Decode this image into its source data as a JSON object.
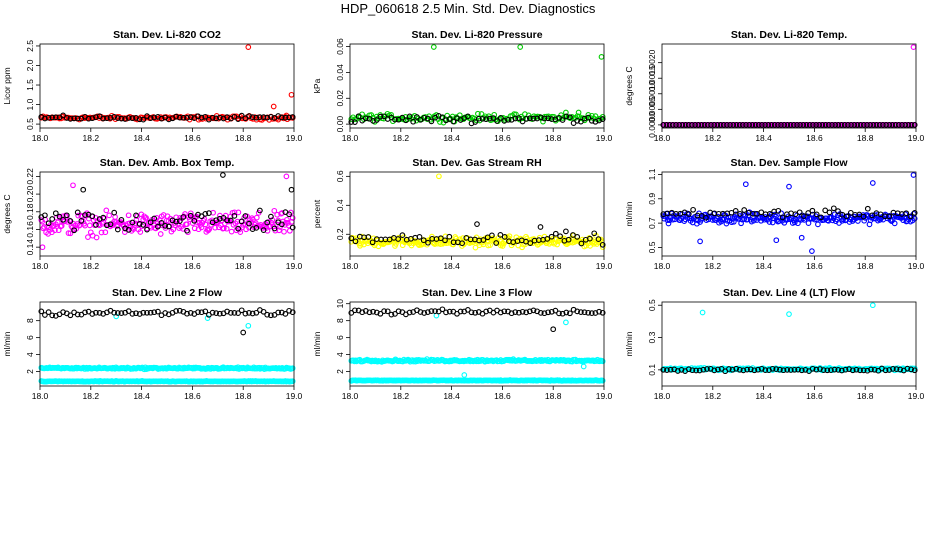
{
  "title": "HDP_060618  2.5 Min. Std. Dev. Diagnostics",
  "chart_data": [
    {
      "type": "scatter",
      "title": "Stan. Dev. Li-820 CO2",
      "ylabel": "Licor ppm",
      "xlim": [
        18.0,
        19.0
      ],
      "ylim": [
        0.4,
        2.55
      ],
      "xticks": [
        "18.0",
        "18.2",
        "18.4",
        "18.6",
        "18.8",
        "19.0"
      ],
      "yticks": [
        {
          "v": 0.5,
          "t": "0.5"
        },
        {
          "v": 1.0,
          "t": "1.0"
        },
        {
          "v": 1.5,
          "t": "1.5"
        },
        {
          "v": 2.0,
          "t": "2.0"
        },
        {
          "v": 2.5,
          "t": "2.5"
        }
      ],
      "series": [
        {
          "color": "#ff0000",
          "base": 0.66,
          "spread": 0.07,
          "n": 140,
          "extra": [
            [
              18.82,
              2.47
            ],
            [
              18.92,
              0.95
            ],
            [
              18.97,
              0.72
            ],
            [
              18.99,
              1.25
            ]
          ]
        },
        {
          "color": "#000000",
          "base": 0.66,
          "spread": 0.07,
          "n": 70,
          "extra": []
        }
      ]
    },
    {
      "type": "scatter",
      "title": "Stan. Dev. Li-820 Pressure",
      "ylabel": "kPa",
      "xlim": [
        18.0,
        19.0
      ],
      "ylim": [
        -0.003,
        0.062
      ],
      "xticks": [
        "18.0",
        "18.2",
        "18.4",
        "18.6",
        "18.8",
        "19.0"
      ],
      "yticks": [
        {
          "v": 0.0,
          "t": "0.00"
        },
        {
          "v": 0.02,
          "t": "0.02"
        },
        {
          "v": 0.04,
          "t": "0.04"
        },
        {
          "v": 0.06,
          "t": "0.06"
        }
      ],
      "series": [
        {
          "color": "#00cc00",
          "base": 0.005,
          "spread": 0.004,
          "n": 140,
          "extra": [
            [
              18.33,
              0.06
            ],
            [
              18.67,
              0.06
            ],
            [
              18.99,
              0.052
            ],
            [
              18.85,
              0.009
            ],
            [
              18.9,
              0.009
            ]
          ]
        },
        {
          "color": "#000000",
          "base": 0.004,
          "spread": 0.004,
          "n": 70,
          "extra": []
        }
      ]
    },
    {
      "type": "scatter",
      "title": "Stan. Dev. Li-820 Temp.",
      "ylabel": "degrees C",
      "xlim": [
        18.0,
        19.0
      ],
      "ylim": [
        -0.0001,
        0.0026
      ],
      "xticks": [
        "18.0",
        "18.2",
        "18.4",
        "18.6",
        "18.8",
        "19.0"
      ],
      "yticks": [
        {
          "v": 0.0,
          "t": "0.0000"
        },
        {
          "v": 0.0005,
          "t": "0.0005"
        },
        {
          "v": 0.001,
          "t": "0.0010"
        },
        {
          "v": 0.0015,
          "t": "0.0015"
        },
        {
          "v": 0.002,
          "t": "0.0020"
        }
      ],
      "series": [
        {
          "color": "#ff00ff",
          "base": 0.0,
          "spread": 0.0,
          "n": 160,
          "extra": [
            [
              18.99,
              0.0025
            ]
          ]
        },
        {
          "color": "#000000",
          "base": 0.0,
          "spread": 0.0,
          "n": 80,
          "extra": []
        }
      ]
    },
    {
      "type": "scatter",
      "title": "Stan. Dev. Amb. Box Temp.",
      "ylabel": "degrees C",
      "xlim": [
        18.0,
        19.0
      ],
      "ylim": [
        0.13,
        0.225
      ],
      "xticks": [
        "18.0",
        "18.2",
        "18.4",
        "18.6",
        "18.8",
        "19.0"
      ],
      "yticks": [
        {
          "v": 0.14,
          "t": "0.14"
        },
        {
          "v": 0.16,
          "t": "0.16"
        },
        {
          "v": 0.18,
          "t": "0.18"
        },
        {
          "v": 0.2,
          "t": "0.20"
        },
        {
          "v": 0.22,
          "t": "0.22"
        }
      ],
      "series": [
        {
          "color": "#ff00ff",
          "base": 0.166,
          "spread": 0.018,
          "n": 260,
          "extra": [
            [
              18.13,
              0.21
            ],
            [
              18.97,
              0.22
            ],
            [
              18.01,
              0.14
            ]
          ]
        },
        {
          "color": "#000000",
          "base": 0.17,
          "spread": 0.02,
          "n": 70,
          "extra": [
            [
              18.72,
              0.222
            ],
            [
              18.17,
              0.205
            ],
            [
              18.99,
              0.205
            ]
          ]
        }
      ]
    },
    {
      "type": "scatter",
      "title": "Stan. Dev. Gas Stream RH",
      "ylabel": "percent",
      "xlim": [
        18.0,
        19.0
      ],
      "ylim": [
        0.05,
        0.63
      ],
      "xticks": [
        "18.0",
        "18.2",
        "18.4",
        "18.6",
        "18.8",
        "19.0"
      ],
      "yticks": [
        {
          "v": 0.2,
          "t": "0.2"
        },
        {
          "v": 0.4,
          "t": "0.4"
        },
        {
          "v": 0.6,
          "t": "0.6"
        }
      ],
      "series": [
        {
          "color": "#ffff00",
          "base": 0.15,
          "spread": 0.05,
          "n": 260,
          "extra": [
            [
              18.35,
              0.6
            ]
          ]
        },
        {
          "color": "#000000",
          "base": 0.17,
          "spread": 0.05,
          "n": 60,
          "extra": [
            [
              18.5,
              0.27
            ],
            [
              18.75,
              0.25
            ],
            [
              18.85,
              0.22
            ]
          ]
        }
      ]
    },
    {
      "type": "scatter",
      "title": "Stan. Dev. Sample Flow",
      "ylabel": "ml/min",
      "xlim": [
        18.0,
        19.0
      ],
      "ylim": [
        0.43,
        1.12
      ],
      "xticks": [
        "18.0",
        "18.2",
        "18.4",
        "18.6",
        "18.8",
        "19.0"
      ],
      "yticks": [
        {
          "v": 0.5,
          "t": "0.5"
        },
        {
          "v": 0.7,
          "t": "0.7"
        },
        {
          "v": 0.9,
          "t": "0.9"
        },
        {
          "v": 1.1,
          "t": "1.1"
        }
      ],
      "series": [
        {
          "color": "#0000ff",
          "base": 0.74,
          "spread": 0.06,
          "n": 240,
          "extra": [
            [
              18.33,
              1.02
            ],
            [
              18.5,
              1.0
            ],
            [
              18.83,
              1.03
            ],
            [
              18.99,
              1.1
            ],
            [
              18.59,
              0.47
            ],
            [
              18.45,
              0.56
            ],
            [
              18.15,
              0.55
            ],
            [
              18.55,
              0.58
            ]
          ]
        },
        {
          "color": "#000000",
          "base": 0.78,
          "spread": 0.05,
          "n": 60,
          "extra": []
        }
      ]
    },
    {
      "type": "scatter",
      "title": "Stan. Dev. Line 2 Flow",
      "ylabel": "ml/min",
      "xlim": [
        18.0,
        19.0
      ],
      "ylim": [
        0.3,
        10.2
      ],
      "xticks": [
        "18.0",
        "18.2",
        "18.4",
        "18.6",
        "18.8",
        "19.0"
      ],
      "yticks": [
        {
          "v": 2,
          "t": "2"
        },
        {
          "v": 4,
          "t": "4"
        },
        {
          "v": 6,
          "t": "6"
        },
        {
          "v": 8,
          "t": "8"
        }
      ],
      "series": [
        {
          "color": "#00ffff",
          "base": 2.4,
          "spread": 0.15,
          "n": 240,
          "extra": [
            [
              18.82,
              7.4
            ],
            [
              18.66,
              8.3
            ],
            [
              18.3,
              8.5
            ]
          ]
        },
        {
          "color": "#00ffff",
          "base": 0.85,
          "spread": 0.06,
          "n": 240,
          "extra": []
        },
        {
          "color": "#000000",
          "base": 8.9,
          "spread": 0.45,
          "n": 70,
          "extra": [
            [
              18.8,
              6.6
            ]
          ]
        }
      ]
    },
    {
      "type": "scatter",
      "title": "Stan. Dev. Line 3 Flow",
      "ylabel": "ml/min",
      "xlim": [
        18.0,
        19.0
      ],
      "ylim": [
        0.3,
        10.2
      ],
      "xticks": [
        "18.0",
        "18.2",
        "18.4",
        "18.6",
        "18.8",
        "19.0"
      ],
      "yticks": [
        {
          "v": 2,
          "t": "2"
        },
        {
          "v": 4,
          "t": "4"
        },
        {
          "v": 6,
          "t": "6"
        },
        {
          "v": 8,
          "t": "8"
        },
        {
          "v": 10,
          "t": "10"
        }
      ],
      "series": [
        {
          "color": "#00ffff",
          "base": 3.3,
          "spread": 0.2,
          "n": 240,
          "extra": [
            [
              18.34,
              8.6
            ],
            [
              18.85,
              7.8
            ],
            [
              18.92,
              2.6
            ],
            [
              18.45,
              1.6
            ]
          ]
        },
        {
          "color": "#00ffff",
          "base": 0.95,
          "spread": 0.06,
          "n": 240,
          "extra": []
        },
        {
          "color": "#000000",
          "base": 9.0,
          "spread": 0.45,
          "n": 70,
          "extra": [
            [
              18.8,
              7.0
            ]
          ]
        }
      ]
    },
    {
      "type": "scatter",
      "title": "Stan. Dev. Line 4 (LT) Flow",
      "ylabel": "ml/min",
      "xlim": [
        18.0,
        19.0
      ],
      "ylim": [
        0.0,
        0.52
      ],
      "xticks": [
        "18.0",
        "18.2",
        "18.4",
        "18.6",
        "18.8",
        "19.0"
      ],
      "yticks": [
        {
          "v": 0.1,
          "t": "0.1"
        },
        {
          "v": 0.3,
          "t": "0.3"
        },
        {
          "v": 0.5,
          "t": "0.5"
        }
      ],
      "series": [
        {
          "color": "#00ffff",
          "base": 0.105,
          "spread": 0.01,
          "n": 240,
          "extra": [
            [
              18.16,
              0.455
            ],
            [
              18.5,
              0.445
            ],
            [
              18.83,
              0.5
            ]
          ]
        },
        {
          "color": "#000000",
          "base": 0.1,
          "spread": 0.012,
          "n": 70,
          "extra": []
        }
      ]
    }
  ]
}
